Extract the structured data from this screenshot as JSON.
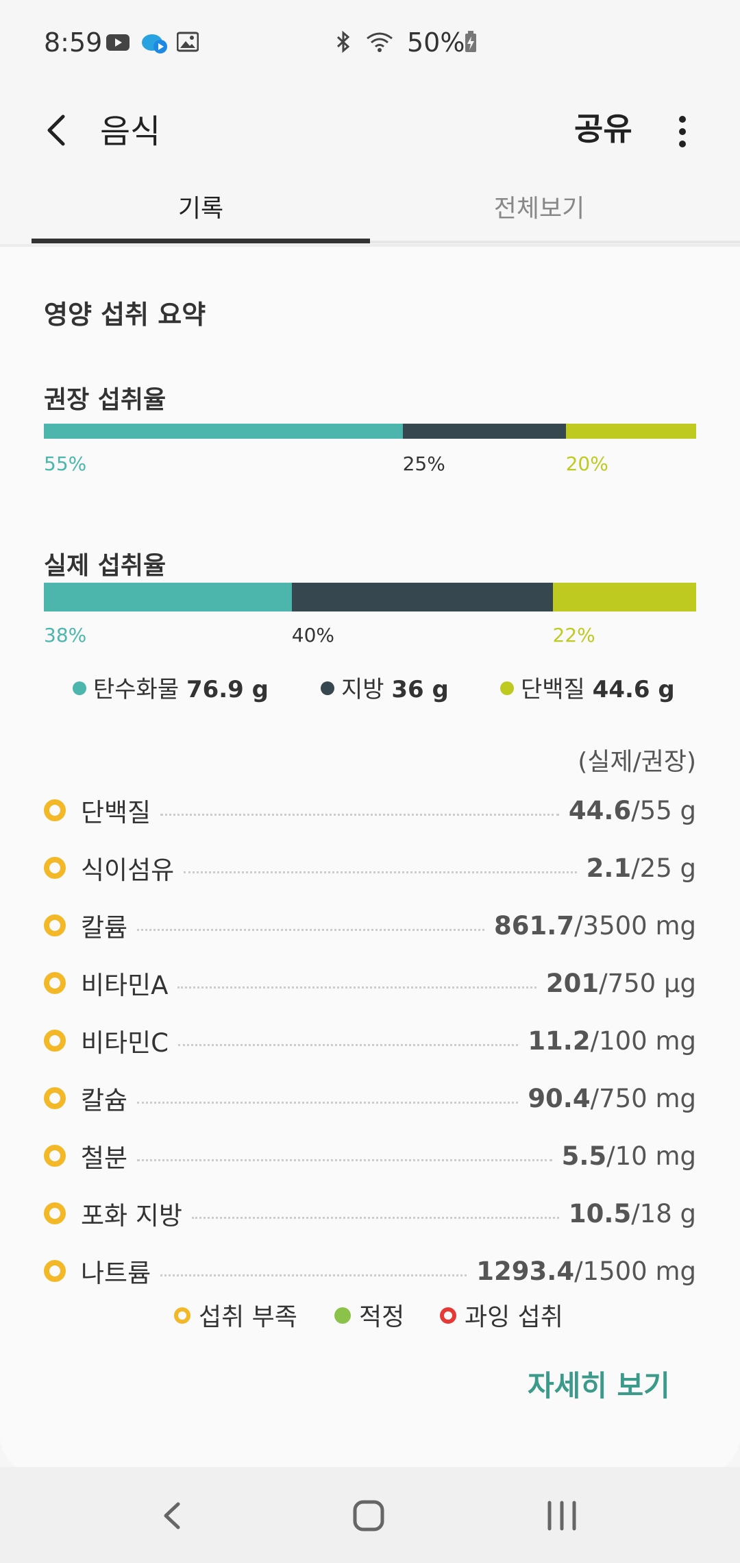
{
  "status_bar": {
    "time": "8:59",
    "battery": "50%"
  },
  "app_bar": {
    "title": "음식",
    "share_label": "공유"
  },
  "tabs": [
    {
      "label": "기록"
    },
    {
      "label": "전체보기"
    }
  ],
  "summary": {
    "title": "영양 섭취 요약",
    "recommended": {
      "label": "권장 섭취율",
      "values": [
        55,
        25,
        20
      ],
      "labels": [
        "55%",
        "25%",
        "20%"
      ]
    },
    "actual": {
      "label": "실제 섭취율",
      "values": [
        38,
        40,
        22
      ],
      "labels": [
        "38%",
        "40%",
        "22%"
      ]
    },
    "legend": [
      {
        "name": "탄수화물",
        "amount": "76.9 g"
      },
      {
        "name": "지방",
        "amount": "36 g"
      },
      {
        "name": "단백질",
        "amount": "44.6 g"
      }
    ],
    "colors": {
      "carb": "#4db6ac",
      "fat": "#37474f",
      "protein": "#bfca21"
    }
  },
  "nutrients_note": "(실제/권장)",
  "nutrients": [
    {
      "name": "단백질",
      "actual": "44.6",
      "recommended": "/55 g"
    },
    {
      "name": "식이섬유",
      "actual": "2.1",
      "recommended": "/25 g"
    },
    {
      "name": "칼륨",
      "actual": "861.7",
      "recommended": "/3500 mg"
    },
    {
      "name": "비타민A",
      "actual": "201",
      "recommended": "/750 μg"
    },
    {
      "name": "비타민C",
      "actual": "11.2",
      "recommended": "/100 mg"
    },
    {
      "name": "칼슘",
      "actual": "90.4",
      "recommended": "/750 mg"
    },
    {
      "name": "철분",
      "actual": "5.5",
      "recommended": "/10 mg"
    },
    {
      "name": "포화 지방",
      "actual": "10.5",
      "recommended": "/18 g"
    },
    {
      "name": "나트륨",
      "actual": "1293.4",
      "recommended": "/1500 mg"
    }
  ],
  "status_legend": [
    {
      "label": "섭취 부족",
      "color": "#f2b827"
    },
    {
      "label": "적정",
      "color": "#8bc34a"
    },
    {
      "label": "과잉 섭취",
      "color": "#e53935"
    }
  ],
  "detail_button": "자세히 보기"
}
